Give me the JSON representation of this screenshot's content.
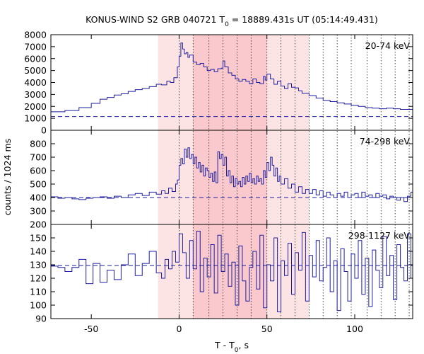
{
  "chart_data": {
    "type": "line",
    "title": "KONUS-WIND S2 GRB 040721 T",
    "title_sub": "0",
    "title_rest": " = 18889.431s UT (05:14:49.431)",
    "xlabel": "T - T",
    "xlabel_sub": "0",
    "xlabel_rest": ", s",
    "ylabel": "counts / 1024 ms",
    "xlim": [
      -73,
      133
    ],
    "x_ticks": [
      -50,
      0,
      50,
      100
    ],
    "shaded_regions": [
      {
        "x": [
          -12,
          74
        ],
        "color": "#fde4e4"
      },
      {
        "x": [
          8,
          50
        ],
        "color": "#f9c9cd"
      }
    ],
    "vertical_dotted_lines": [
      0,
      8,
      17,
      25,
      33,
      41,
      50,
      58,
      66,
      74,
      82,
      90,
      98,
      107,
      115,
      123,
      131
    ],
    "colors": {
      "line": "#1e1e9e",
      "background_line": "#1e1e9e"
    },
    "panels": [
      {
        "band": "20-74 keV",
        "ylim": [
          0,
          8000
        ],
        "y_ticks": [
          0,
          1000,
          2000,
          3000,
          4000,
          5000,
          6000,
          7000,
          8000
        ],
        "background": 1150,
        "series": [
          {
            "x": [
              -73,
              -65,
              -57,
              -50,
              -45,
              -41,
              -37,
              -33,
              -29,
              -25,
              -21,
              -17,
              -13,
              -10,
              -7,
              -5,
              -3,
              -1,
              0,
              1,
              2,
              3,
              4,
              5,
              6,
              8,
              10,
              12,
              14,
              16,
              18,
              20,
              22,
              24,
              25,
              26,
              28,
              30,
              32,
              34,
              36,
              38,
              40,
              42,
              44,
              46,
              48,
              49,
              50,
              52,
              54,
              56,
              58,
              60,
              62,
              64,
              66,
              68,
              70,
              74,
              78,
              82,
              86,
              90,
              94,
              98,
              102,
              106,
              110,
              114,
              118,
              122,
              126,
              130,
              133
            ],
            "y": [
              1550,
              1650,
              1900,
              2250,
              2600,
              2750,
              2950,
              3050,
              3250,
              3400,
              3500,
              3650,
              3850,
              3800,
              4100,
              4000,
              4400,
              5300,
              6200,
              7300,
              6800,
              6400,
              6500,
              6100,
              6300,
              5700,
              5500,
              5600,
              5300,
              5000,
              5100,
              4900,
              5150,
              5200,
              5800,
              5300,
              4800,
              4600,
              4300,
              4100,
              4250,
              4100,
              3900,
              4300,
              4000,
              3900,
              4500,
              4200,
              4700,
              4300,
              3850,
              4100,
              3700,
              3500,
              3900,
              3600,
              3550,
              3300,
              3100,
              2900,
              2700,
              2500,
              2400,
              2300,
              2200,
              2100,
              2000,
              1900,
              1850,
              1800,
              1850,
              1800,
              1750,
              1750,
              1700
            ]
          }
        ]
      },
      {
        "band": "74-298 keV",
        "ylim": [
          200,
          900
        ],
        "y_ticks": [
          200,
          300,
          400,
          500,
          600,
          700,
          800
        ],
        "background": 400,
        "series": [
          {
            "x": [
              -73,
              -69,
              -65,
              -61,
              -57,
              -53,
              -49,
              -45,
              -41,
              -37,
              -33,
              -29,
              -25,
              -21,
              -17,
              -13,
              -10,
              -8,
              -6,
              -4,
              -2,
              -1,
              0,
              1,
              2,
              3,
              4,
              5,
              6,
              7,
              8,
              9,
              10,
              11,
              12,
              13,
              14,
              15,
              16,
              17,
              18,
              19,
              20,
              21,
              22,
              23,
              24,
              25,
              26,
              27,
              28,
              29,
              30,
              31,
              32,
              33,
              34,
              35,
              36,
              37,
              38,
              39,
              40,
              41,
              42,
              43,
              44,
              45,
              46,
              47,
              48,
              49,
              50,
              51,
              52,
              53,
              54,
              55,
              56,
              57,
              58,
              60,
              62,
              64,
              66,
              68,
              70,
              72,
              74,
              76,
              78,
              80,
              82,
              84,
              86,
              88,
              90,
              92,
              94,
              96,
              98,
              100,
              102,
              104,
              106,
              108,
              110,
              112,
              114,
              116,
              118,
              120,
              122,
              124,
              126,
              128,
              130,
              132
            ],
            "y": [
              405,
              395,
              400,
              390,
              385,
              395,
              400,
              405,
              395,
              410,
              400,
              420,
              430,
              415,
              440,
              425,
              450,
              430,
              470,
              445,
              500,
              530,
              640,
              690,
              650,
              760,
              700,
              770,
              690,
              720,
              650,
              700,
              620,
              660,
              590,
              640,
              560,
              620,
              600,
              550,
              580,
              520,
              590,
              510,
              740,
              690,
              720,
              640,
              700,
              560,
              600,
              510,
              560,
              480,
              540,
              500,
              520,
              480,
              550,
              500,
              560,
              520,
              580,
              510,
              540,
              500,
              560,
              520,
              540,
              500,
              600,
              550,
              660,
              600,
              700,
              640,
              560,
              620,
              520,
              560,
              500,
              540,
              470,
              500,
              440,
              480,
              430,
              460,
              430,
              460,
              420,
              450,
              410,
              440,
              420,
              400,
              430,
              410,
              440,
              400,
              420,
              430,
              400,
              440,
              410,
              420,
              400,
              430,
              410,
              420,
              390,
              410,
              400,
              380,
              400,
              370,
              410,
              440
            ]
          }
        ]
      },
      {
        "band": "298-1127 keV",
        "ylim": [
          90,
          160
        ],
        "y_ticks": [
          90,
          100,
          110,
          120,
          130,
          140,
          150
        ],
        "background": 129.5,
        "series": [
          {
            "x": [
              -73,
              -69,
              -65,
              -61,
              -57,
              -53,
              -49,
              -45,
              -41,
              -37,
              -33,
              -29,
              -25,
              -21,
              -17,
              -13,
              -10,
              -8,
              -6,
              -4,
              -2,
              0,
              2,
              4,
              6,
              8,
              10,
              12,
              14,
              16,
              18,
              20,
              22,
              24,
              26,
              28,
              30,
              32,
              34,
              36,
              38,
              40,
              42,
              44,
              46,
              48,
              50,
              52,
              54,
              56,
              58,
              60,
              62,
              64,
              66,
              68,
              70,
              72,
              74,
              76,
              78,
              80,
              82,
              84,
              86,
              88,
              90,
              92,
              94,
              96,
              98,
              100,
              102,
              104,
              106,
              108,
              110,
              112,
              114,
              116,
              118,
              120,
              122,
              124,
              126,
              128,
              130,
              132
            ],
            "y": [
              129,
              128,
              125,
              128,
              134,
              116,
              131,
              117,
              126,
              119,
              130,
              138,
              122,
              131,
              140,
              124,
              120,
              134,
              127,
              140,
              132,
              153,
              139,
              120,
              148,
              127,
              155,
              110,
              135,
              121,
              145,
              109,
              152,
              125,
              138,
              114,
              132,
              100,
              144,
              118,
              103,
              128,
              140,
              112,
              152,
              98,
              130,
              118,
              150,
              95,
              133,
              122,
              146,
              108,
              139,
              126,
              154,
              103,
              137,
              121,
              148,
              118,
              128,
              150,
              110,
              133,
              96,
              142,
              125,
              103,
              138,
              120,
              148,
              108,
              135,
              99,
              141,
              126,
              113,
              151,
              122,
              137,
              104,
              145,
              128,
              118,
              153,
              120
            ]
          }
        ]
      }
    ]
  }
}
